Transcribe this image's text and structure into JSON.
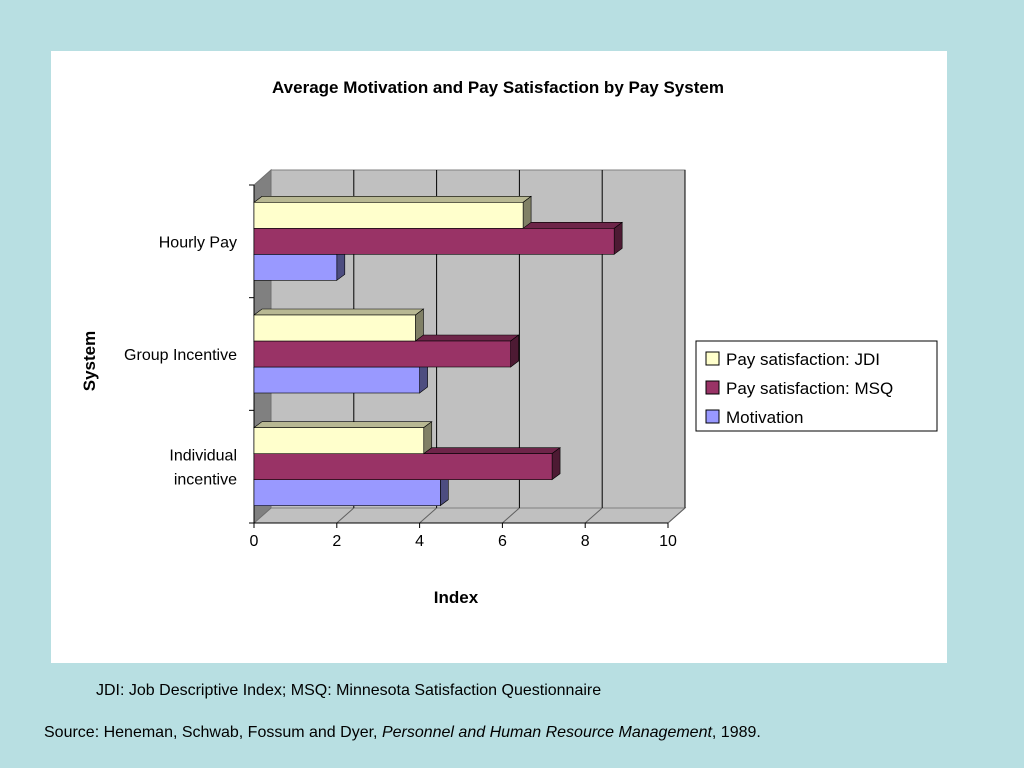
{
  "chart_data": {
    "type": "bar",
    "orientation": "horizontal",
    "title": "Average Motivation and Pay Satisfaction by Pay System",
    "xlabel": "Index",
    "ylabel": "System",
    "xlim": [
      0,
      10
    ],
    "x_ticks": [
      "0",
      "2",
      "4",
      "6",
      "8",
      "10"
    ],
    "categories": [
      "Hourly Pay",
      "Group Incentive",
      "Individual incentive"
    ],
    "category_lines": [
      [
        "Hourly Pay"
      ],
      [
        "Group Incentive"
      ],
      [
        "Individual",
        "incentive"
      ]
    ],
    "series": [
      {
        "name": "Pay satisfaction: JDI",
        "values": [
          6.5,
          3.9,
          4.1
        ],
        "color": "#ffffcc"
      },
      {
        "name": "Pay satisfaction: MSQ",
        "values": [
          8.7,
          6.2,
          7.2
        ],
        "color": "#993366"
      },
      {
        "name": "Motivation",
        "values": [
          2.0,
          4.0,
          4.5
        ],
        "color": "#9999ff"
      }
    ],
    "grid": true,
    "legend_position": "right",
    "style": "3d"
  },
  "footnote": "JDI: Job Descriptive Index;  MSQ: Minnesota Satisfaction Questionnaire",
  "source": {
    "prefix": "Source: Heneman, Schwab, Fossum and Dyer, ",
    "title": "Personnel and Human Resource Management",
    "suffix": ", 1989."
  }
}
